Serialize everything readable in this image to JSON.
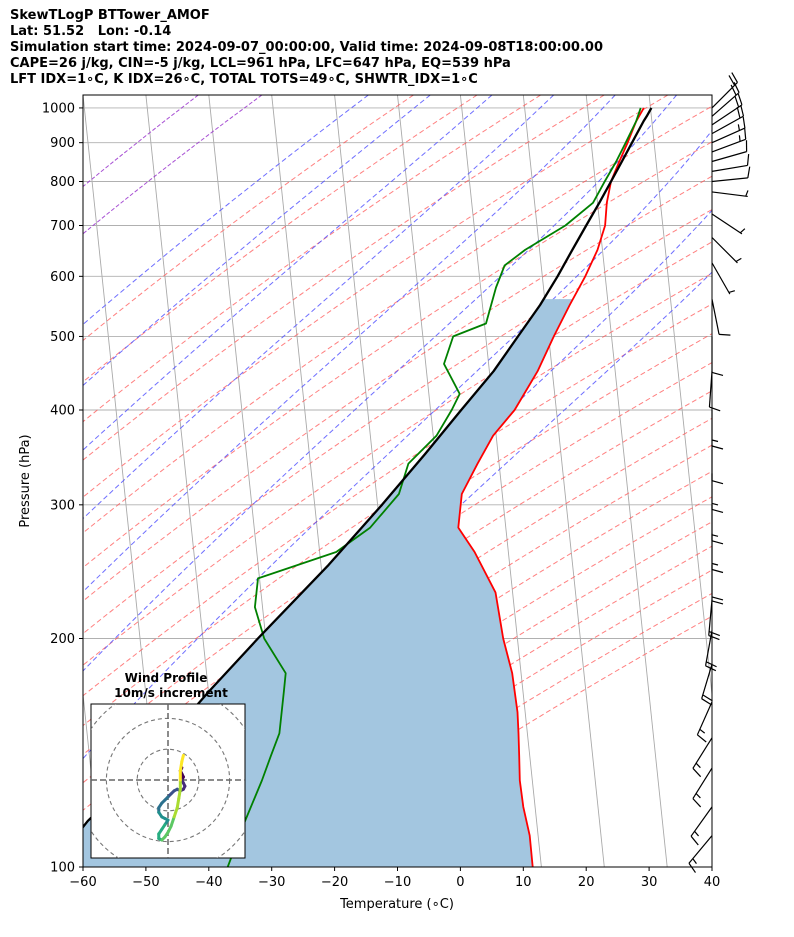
{
  "header": {
    "lines": [
      "SkewTLogP BTTower_AMOF",
      "Lat: 51.52   Lon: -0.14",
      "Simulation start time: 2024-09-07_00:00:00, Valid time: 2024-09-08T18:00:00.00",
      "CAPE=26 j/kg, CIN=-5 j/kg, LCL=961 hPa, LFC=647 hPa, EQ=539 hPa",
      "LFT IDX=1∘C, K IDX=26∘C, TOTAL TOTS=49∘C, SHWTR_IDX=1∘C"
    ]
  },
  "chart_data": [
    {
      "type": "line",
      "subtype": "skew-T log-P",
      "xlabel": "Temperature (∘C)",
      "ylabel": "Pressure (hPa)",
      "xlim": [
        -60,
        40
      ],
      "ylim": [
        1040,
        100
      ],
      "y_scale": "log",
      "x_ticks": [
        -60,
        -50,
        -40,
        -30,
        -20,
        -10,
        0,
        10,
        20,
        30,
        40
      ],
      "x_tick_labels": [
        "−60",
        "−50",
        "−40",
        "−30",
        "−20",
        "−10",
        "0",
        "10",
        "20",
        "30",
        "40"
      ],
      "y_ticks": [
        1000,
        900,
        800,
        700,
        600,
        500,
        400,
        300,
        200,
        100
      ],
      "grid": true,
      "reference_lines": {
        "isotherms": {
          "color": "#aaaaaa",
          "values": [
            -120,
            -110,
            -100,
            -90,
            -80,
            -70,
            -60,
            -50,
            -40,
            -30,
            -20,
            -10,
            0,
            10,
            20,
            30,
            40
          ]
        },
        "dry_adiabats": {
          "color": "#ff5555",
          "theta_k": [
            250,
            260,
            270,
            280,
            290,
            300,
            310,
            320,
            330,
            340,
            350,
            360,
            370,
            380,
            390,
            400,
            410,
            420,
            430,
            440,
            450,
            460,
            470,
            480
          ]
        },
        "moist_adiabats": {
          "color": "#5555ff",
          "surface_temp_c": [
            -30,
            -20,
            -10,
            0,
            10,
            20,
            30,
            40,
            50
          ]
        },
        "isohume_purple": {
          "color": "#9933cc",
          "surface_temp_c": [
            -55,
            -45
          ]
        }
      },
      "series": [
        {
          "role": "temperature",
          "color": "#ff0000",
          "points": [
            [
              1000,
              16.5
            ],
            [
              960,
              15.5
            ],
            [
              900,
              14.5
            ],
            [
              850,
              13.5
            ],
            [
              800,
              12.5
            ],
            [
              750,
              12.2
            ],
            [
              700,
              12.3
            ],
            [
              650,
              11.5
            ],
            [
              600,
              10
            ],
            [
              550,
              8
            ],
            [
              500,
              6
            ],
            [
              450,
              4
            ],
            [
              400,
              1
            ],
            [
              370,
              -2
            ],
            [
              340,
              -4
            ],
            [
              310,
              -6
            ],
            [
              290,
              -6
            ],
            [
              280,
              -6
            ],
            [
              260,
              -3
            ],
            [
              230,
              1
            ],
            [
              200,
              3
            ],
            [
              180,
              5
            ],
            [
              160,
              6.5
            ],
            [
              150,
              7
            ],
            [
              140,
              7.5
            ],
            [
              130,
              8
            ],
            [
              120,
              9
            ],
            [
              110,
              10.5
            ],
            [
              100,
              11.5
            ]
          ]
        },
        {
          "role": "dewpoint",
          "color": "#008000",
          "points": [
            [
              1000,
              16
            ],
            [
              960,
              15.5
            ],
            [
              900,
              14.2
            ],
            [
              850,
              13
            ],
            [
              800,
              11.5
            ],
            [
              750,
              10
            ],
            [
              700,
              6
            ],
            [
              650,
              0
            ],
            [
              620,
              -3
            ],
            [
              580,
              -4
            ],
            [
              520,
              -5
            ],
            [
              500,
              -10
            ],
            [
              460,
              -11
            ],
            [
              420,
              -8
            ],
            [
              400,
              -9
            ],
            [
              370,
              -11
            ],
            [
              340,
              -15
            ],
            [
              310,
              -16
            ],
            [
              280,
              -20
            ],
            [
              260,
              -25
            ],
            [
              240,
              -37
            ],
            [
              220,
              -37
            ],
            [
              200,
              -35
            ],
            [
              180,
              -31
            ],
            [
              170,
              -31
            ],
            [
              150,
              -31
            ],
            [
              140,
              -32
            ],
            [
              130,
              -33
            ],
            [
              115,
              -35
            ],
            [
              100,
              -37
            ]
          ]
        },
        {
          "role": "parcel",
          "color": "#000000",
          "points": [
            [
              1000,
              17.7
            ],
            [
              975,
              17.1
            ],
            [
              961,
              16.7
            ],
            [
              900,
              15.2
            ],
            [
              850,
              13.9
            ],
            [
              800,
              12.5
            ],
            [
              750,
              11.0
            ],
            [
              700,
              9.3
            ],
            [
              650,
              7.5
            ],
            [
              600,
              5.6
            ],
            [
              550,
              3.3
            ],
            [
              500,
              0.3
            ],
            [
              450,
              -3.0
            ],
            [
              400,
              -7.5
            ],
            [
              350,
              -12.5
            ],
            [
              300,
              -18.5
            ],
            [
              250,
              -26
            ],
            [
              200,
              -36
            ],
            [
              170,
              -43
            ],
            [
              150,
              -48
            ],
            [
              130,
              -54
            ],
            [
              115,
              -60
            ],
            [
              100,
              -65
            ]
          ]
        }
      ],
      "cape_fill": {
        "color": "#a3c6e0"
      },
      "wind_barbs": {
        "color": "#000000",
        "units": "m/s",
        "barbs": [
          {
            "p": 1000,
            "u": -7.5,
            "v": -7.5
          },
          {
            "p": 975,
            "u": -8,
            "v": -7
          },
          {
            "p": 950,
            "u": -9,
            "v": -6
          },
          {
            "p": 925,
            "u": -9,
            "v": -5
          },
          {
            "p": 900,
            "u": -9,
            "v": -4
          },
          {
            "p": 875,
            "u": -8,
            "v": -3
          },
          {
            "p": 850,
            "u": -7,
            "v": -2
          },
          {
            "p": 825,
            "u": -6,
            "v": -1
          },
          {
            "p": 800,
            "u": -5,
            "v": -0.5
          },
          {
            "p": 775,
            "u": -4,
            "v": 0.5
          },
          {
            "p": 725,
            "u": -3,
            "v": 2
          },
          {
            "p": 675,
            "u": -3,
            "v": 3
          },
          {
            "p": 625,
            "u": -2,
            "v": 3.5
          },
          {
            "p": 560,
            "u": -1,
            "v": 5
          },
          {
            "p": 500,
            "u": 0,
            "v": 5.5
          },
          {
            "p": 450,
            "u": 0.5,
            "v": 7
          },
          {
            "p": 400,
            "u": 0,
            "v": 7.5
          },
          {
            "p": 360,
            "u": 0,
            "v": 7
          },
          {
            "p": 330,
            "u": 0,
            "v": 8
          },
          {
            "p": 300,
            "u": 0,
            "v": 9
          },
          {
            "p": 275,
            "u": 0,
            "v": 9.5
          },
          {
            "p": 250,
            "u": 0,
            "v": 10
          },
          {
            "p": 225,
            "u": 1,
            "v": 11
          },
          {
            "p": 205,
            "u": 2,
            "v": 11
          },
          {
            "p": 185,
            "u": 3,
            "v": 10
          },
          {
            "p": 165,
            "u": 4,
            "v": 9
          },
          {
            "p": 148,
            "u": 5,
            "v": 8
          },
          {
            "p": 135,
            "u": 5,
            "v": 8
          },
          {
            "p": 120,
            "u": 5,
            "v": 7
          },
          {
            "p": 110,
            "u": 5,
            "v": 6
          }
        ]
      }
    },
    {
      "type": "line",
      "subtype": "hodograph",
      "title": "Wind Profile",
      "subtitle": "10m/s increment",
      "ring_spacing": 10,
      "rings": 3,
      "range": [
        -25,
        25
      ],
      "colormap": "viridis",
      "points": [
        [
          4.5,
          4
        ],
        [
          4,
          3
        ],
        [
          4.5,
          2
        ],
        [
          5,
          1
        ],
        [
          4.5,
          0
        ],
        [
          5,
          -1
        ],
        [
          5.5,
          -2
        ],
        [
          5,
          -3
        ],
        [
          4,
          -3.5
        ],
        [
          3,
          -3
        ],
        [
          2,
          -3.5
        ],
        [
          1,
          -4.5
        ],
        [
          0,
          -5.5
        ],
        [
          -1,
          -6.5
        ],
        [
          -2,
          -7.5
        ],
        [
          -3,
          -9
        ],
        [
          -3,
          -10.5
        ],
        [
          -2,
          -12
        ],
        [
          -1,
          -12.5
        ],
        [
          0,
          -13
        ],
        [
          -1,
          -14.5
        ],
        [
          -2,
          -16
        ],
        [
          -3,
          -17.5
        ],
        [
          -3,
          -19
        ],
        [
          -2,
          -19.5
        ],
        [
          -1,
          -18.5
        ],
        [
          0,
          -17
        ],
        [
          1,
          -15
        ],
        [
          2,
          -12
        ],
        [
          3,
          -9
        ],
        [
          3.5,
          -6
        ],
        [
          4,
          -3
        ],
        [
          4,
          0
        ],
        [
          4,
          3
        ],
        [
          4.5,
          6
        ],
        [
          5,
          8
        ]
      ]
    }
  ]
}
